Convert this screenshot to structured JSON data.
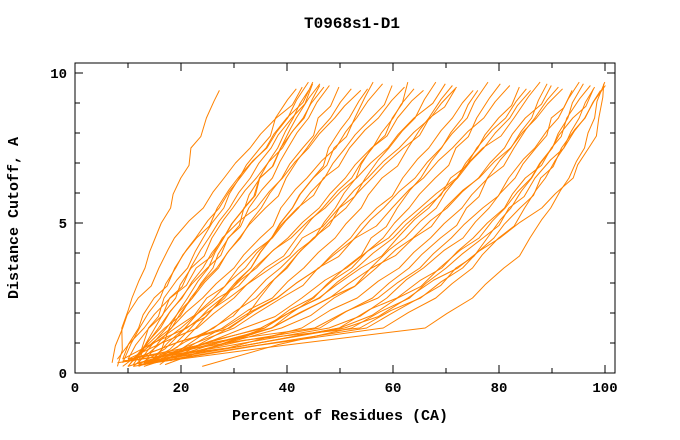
{
  "window": {
    "title": "T0968s1-D1"
  },
  "colors": {
    "curve": "#FF8200",
    "axis": "#000000",
    "text": "#000000",
    "background": "#FFFFFF"
  },
  "chart_data": {
    "type": "line",
    "title": "T0968s1-D1",
    "xlabel": "Percent of Residues (CA)",
    "ylabel": "Distance Cutoff, A",
    "xlim": [
      0,
      102
    ],
    "ylim": [
      0,
      10.3
    ],
    "grid": false,
    "legend": "none",
    "x_ticks_major": [
      0,
      20,
      40,
      60,
      80,
      100
    ],
    "x_tick_labels": [
      "0",
      "20",
      "40",
      "60",
      "80",
      "100"
    ],
    "x_ticks_minor": [
      10,
      30,
      50,
      70,
      90
    ],
    "y_ticks_major": [
      0,
      5,
      10
    ],
    "y_tick_labels": [
      "0",
      "5",
      "10"
    ],
    "y_ticks_minor": [
      1,
      2,
      3,
      4,
      6,
      7,
      8,
      9
    ],
    "series_y_levels": [
      0.4,
      1.5,
      2.5,
      3.5,
      4.5,
      5.5,
      6.5,
      7.5,
      8.5,
      9.6
    ],
    "series": [
      [
        8,
        9,
        11,
        13,
        15,
        18,
        20,
        22,
        25,
        27
      ],
      [
        9,
        12,
        16,
        19,
        23,
        27,
        31,
        36,
        40,
        44
      ],
      [
        10,
        14,
        18,
        22,
        25,
        29,
        33,
        37,
        41,
        45
      ],
      [
        11,
        16,
        20,
        24,
        28,
        32,
        35,
        39,
        43,
        46
      ],
      [
        12,
        15,
        19,
        22,
        26,
        30,
        34,
        39,
        43,
        47
      ],
      [
        10,
        14,
        17,
        21,
        24,
        28,
        31,
        35,
        38,
        42
      ],
      [
        13,
        18,
        22,
        26,
        29,
        32,
        35,
        38,
        41,
        44
      ],
      [
        9,
        12,
        15,
        19,
        23,
        27,
        31,
        36,
        40,
        45
      ],
      [
        14,
        18,
        21,
        25,
        28,
        32,
        35,
        39,
        42,
        46
      ],
      [
        11,
        16,
        20,
        25,
        29,
        33,
        37,
        40,
        44,
        48
      ],
      [
        10,
        17,
        22,
        27,
        31,
        35,
        39,
        43,
        46,
        50
      ],
      [
        12,
        17,
        22,
        27,
        31,
        36,
        40,
        44,
        48,
        52
      ],
      [
        8,
        13,
        18,
        23,
        28,
        34,
        39,
        44,
        49,
        54
      ],
      [
        13,
        22,
        28,
        33,
        37,
        41,
        45,
        49,
        53,
        56
      ],
      [
        11,
        18,
        24,
        30,
        35,
        39,
        44,
        49,
        53,
        58
      ],
      [
        9,
        19,
        25,
        31,
        37,
        42,
        47,
        51,
        56,
        60
      ],
      [
        14,
        21,
        26,
        32,
        37,
        42,
        47,
        52,
        57,
        62
      ],
      [
        10,
        23,
        30,
        36,
        42,
        47,
        52,
        56,
        60,
        64
      ],
      [
        12,
        21,
        28,
        34,
        40,
        46,
        51,
        56,
        61,
        66
      ],
      [
        15,
        26,
        34,
        40,
        45,
        50,
        55,
        59,
        64,
        68
      ],
      [
        11,
        20,
        27,
        34,
        41,
        47,
        53,
        59,
        64,
        70
      ],
      [
        13,
        28,
        37,
        43,
        49,
        54,
        58,
        63,
        67,
        71
      ],
      [
        9,
        21,
        29,
        37,
        43,
        50,
        55,
        61,
        67,
        72
      ],
      [
        16,
        26,
        33,
        39,
        45,
        51,
        56,
        62,
        67,
        72
      ],
      [
        10,
        29,
        38,
        46,
        52,
        57,
        62,
        67,
        71,
        75
      ],
      [
        12,
        30,
        39,
        46,
        53,
        58,
        64,
        69,
        74,
        78
      ],
      [
        14,
        36,
        45,
        52,
        58,
        63,
        68,
        72,
        76,
        80
      ],
      [
        11,
        28,
        38,
        46,
        53,
        60,
        66,
        71,
        77,
        82
      ],
      [
        13,
        39,
        49,
        56,
        62,
        68,
        72,
        76,
        80,
        84
      ],
      [
        15,
        36,
        46,
        53,
        60,
        66,
        71,
        76,
        81,
        85
      ],
      [
        10,
        35,
        46,
        54,
        61,
        67,
        72,
        77,
        82,
        86
      ],
      [
        12,
        32,
        43,
        51,
        59,
        65,
        72,
        77,
        83,
        88
      ],
      [
        16,
        46,
        56,
        63,
        69,
        74,
        78,
        82,
        86,
        89
      ],
      [
        11,
        37,
        48,
        57,
        64,
        70,
        76,
        81,
        85,
        90
      ],
      [
        14,
        43,
        53,
        61,
        67,
        73,
        78,
        83,
        87,
        91
      ],
      [
        13,
        37,
        48,
        56,
        64,
        70,
        76,
        82,
        87,
        92
      ],
      [
        8,
        48,
        59,
        66,
        73,
        78,
        83,
        87,
        90,
        94
      ],
      [
        10,
        45,
        57,
        65,
        71,
        77,
        82,
        87,
        91,
        95
      ],
      [
        12,
        55,
        65,
        72,
        78,
        82,
        86,
        90,
        93,
        96
      ],
      [
        9,
        50,
        61,
        69,
        75,
        81,
        85,
        90,
        93,
        97
      ],
      [
        11,
        58,
        68,
        75,
        80,
        85,
        89,
        92,
        95,
        98
      ],
      [
        13,
        50,
        61,
        69,
        76,
        81,
        86,
        90,
        94,
        98
      ],
      [
        10,
        54,
        65,
        73,
        79,
        84,
        88,
        92,
        96,
        99
      ],
      [
        12,
        66,
        75,
        81,
        86,
        90,
        93,
        96,
        98,
        100
      ],
      [
        9,
        51,
        63,
        72,
        80,
        88,
        94,
        97,
        99,
        100
      ],
      [
        24,
        52,
        63,
        70,
        77,
        82,
        87,
        92,
        96,
        100
      ],
      [
        7,
        9,
        12,
        16,
        19,
        24,
        28,
        33,
        38,
        43
      ],
      [
        15,
        23,
        28,
        33,
        37,
        41,
        45,
        48,
        52,
        55
      ],
      [
        17,
        37,
        45,
        51,
        56,
        61,
        65,
        69,
        73,
        76
      ],
      [
        18,
        29,
        35,
        40,
        45,
        49,
        53,
        56,
        60,
        63
      ]
    ]
  }
}
